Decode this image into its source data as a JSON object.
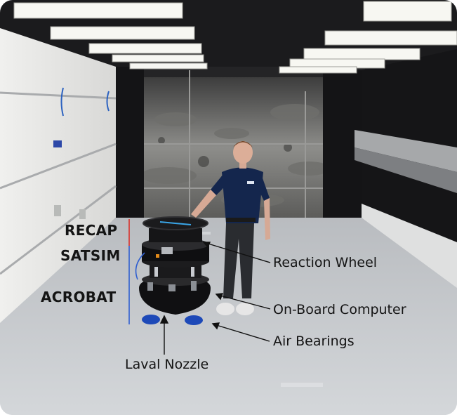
{
  "photo": {
    "subject": "Person standing next to a floating spacecraft simulator in a lab",
    "accent_red": "#d9312b",
    "accent_blue": "#2f5fd0"
  },
  "stack_labels": {
    "top": "RECAP",
    "middle": "SATSIM",
    "bottom": "ACROBAT"
  },
  "callouts": {
    "reaction_wheel": "Reaction Wheel",
    "onboard_computer": "On-Board Computer",
    "air_bearings": "Air Bearings",
    "laval_nozzle": "Laval Nozzle"
  }
}
